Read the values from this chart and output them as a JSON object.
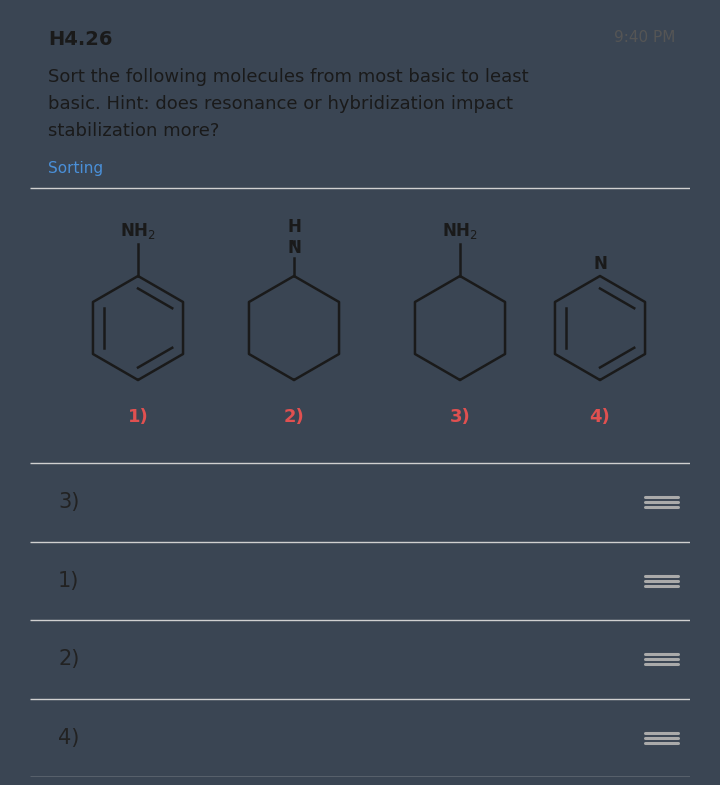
{
  "title": "H4.26",
  "time": "9:40 PM",
  "question_line1": "Sort the following molecules from most basic to least",
  "question_line2": "basic. Hint: does resonance or hybridization impact",
  "question_line3": "stabilization more?",
  "tag": "Sorting",
  "tag_color": "#4a90d9",
  "bg_color": "#ffffff",
  "outer_bg": "#3a4553",
  "card_bg": "#f5f5f7",
  "separator_color": "#d0d0d0",
  "molecule_labels": [
    "1)",
    "2)",
    "3)",
    "4)"
  ],
  "label_color": "#e05050",
  "sort_items": [
    "3)",
    "1)",
    "2)",
    "4)"
  ],
  "sort_text_color": "#222222",
  "hamburger_color": "#aaaaaa",
  "title_color": "#1a1a1a",
  "time_color": "#555555",
  "question_color": "#1a1a1a"
}
